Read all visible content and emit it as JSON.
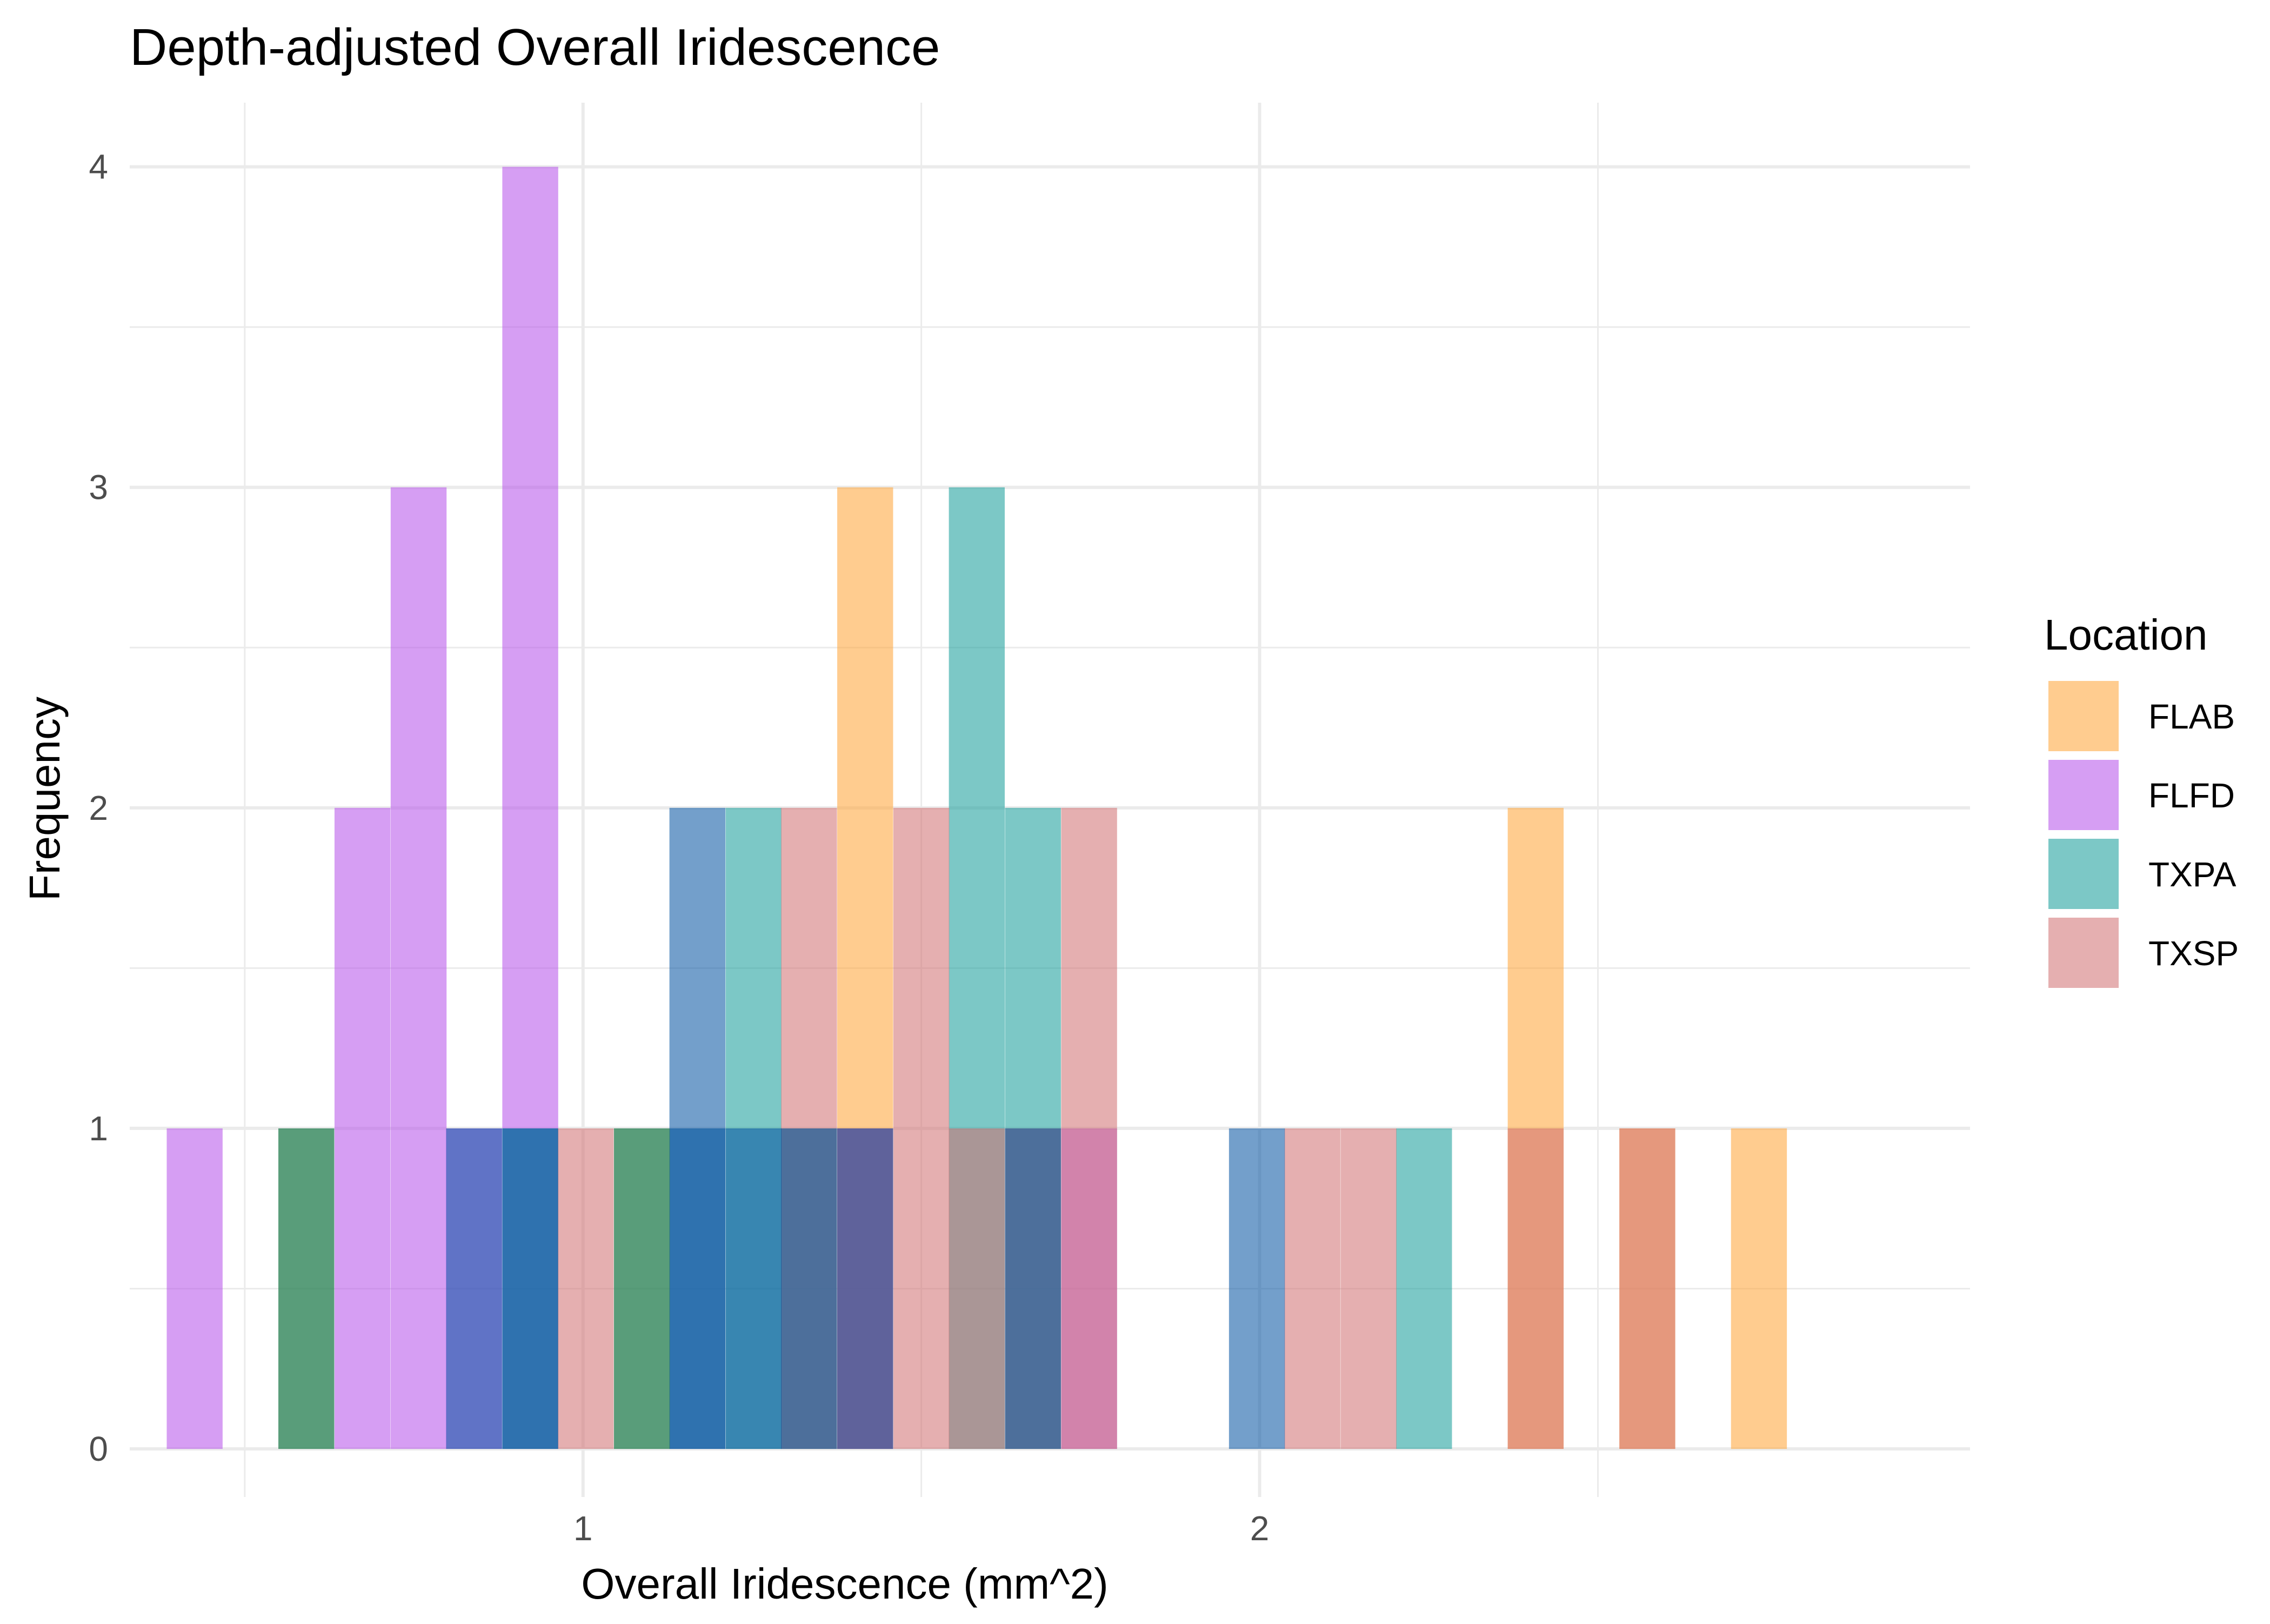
{
  "chart_data": {
    "type": "bar",
    "title": "Depth-adjusted Overall Iridescence",
    "xlabel": "Overall Iridescence (mm^2)",
    "ylabel": "Frequency",
    "xlim": [
      0.33,
      3.05
    ],
    "ylim": [
      -0.15,
      4.2
    ],
    "x_ticks": [
      1,
      2
    ],
    "y_ticks": [
      0,
      1,
      2,
      3,
      4
    ],
    "grid": true,
    "bin_width": 0.0826,
    "legend": {
      "title": "Location",
      "position": "right"
    },
    "series": [
      {
        "name": "FLAB",
        "color": "#FFA233",
        "bins": [
          {
            "x": 1.417,
            "y": 3
          },
          {
            "x": 2.408,
            "y": 2
          },
          {
            "x": 2.573,
            "y": 1
          },
          {
            "x": 2.738,
            "y": 1
          }
        ]
      },
      {
        "name": "FLFD",
        "color": "#B44EEA",
        "bins": [
          {
            "x": 0.426,
            "y": 1
          },
          {
            "x": 0.674,
            "y": 2
          },
          {
            "x": 0.757,
            "y": 3
          },
          {
            "x": 0.839,
            "y": 1
          },
          {
            "x": 0.922,
            "y": 4
          },
          {
            "x": 1.169,
            "y": 1
          },
          {
            "x": 1.417,
            "y": 1
          },
          {
            "x": 1.748,
            "y": 1
          }
        ]
      },
      {
        "name": "TXPA",
        "color": "#109B98",
        "bins": [
          {
            "x": 0.591,
            "y": 1
          },
          {
            "x": 0.922,
            "y": 1
          },
          {
            "x": 1.087,
            "y": 1
          },
          {
            "x": 1.169,
            "y": 1
          },
          {
            "x": 1.252,
            "y": 2
          },
          {
            "x": 1.334,
            "y": 1
          },
          {
            "x": 1.582,
            "y": 3
          },
          {
            "x": 1.665,
            "y": 2
          },
          {
            "x": 2.243,
            "y": 1
          }
        ]
      },
      {
        "name": "TXSP",
        "color": "#D06E70",
        "bins": [
          {
            "x": 1.004,
            "y": 1
          },
          {
            "x": 1.334,
            "y": 2
          },
          {
            "x": 1.417,
            "y": 1
          },
          {
            "x": 1.5,
            "y": 2
          },
          {
            "x": 1.582,
            "y": 1
          },
          {
            "x": 1.665,
            "y": 1
          },
          {
            "x": 1.748,
            "y": 2
          },
          {
            "x": 2.078,
            "y": 1
          },
          {
            "x": 2.161,
            "y": 1
          },
          {
            "x": 2.408,
            "y": 1
          },
          {
            "x": 2.573,
            "y": 1
          }
        ]
      },
      {
        "name": "",
        "color": "#0050A0",
        "bins": [
          {
            "x": 0.839,
            "y": 1
          },
          {
            "x": 0.922,
            "y": 1
          },
          {
            "x": 1.169,
            "y": 2
          },
          {
            "x": 1.252,
            "y": 1
          },
          {
            "x": 1.334,
            "y": 1
          },
          {
            "x": 1.417,
            "y": 1
          },
          {
            "x": 1.665,
            "y": 1
          },
          {
            "x": 1.996,
            "y": 1
          }
        ]
      },
      {
        "name": "",
        "color": "#3D7A3D",
        "bins": [
          {
            "x": 0.591,
            "y": 1
          },
          {
            "x": 1.087,
            "y": 1
          }
        ]
      }
    ]
  }
}
